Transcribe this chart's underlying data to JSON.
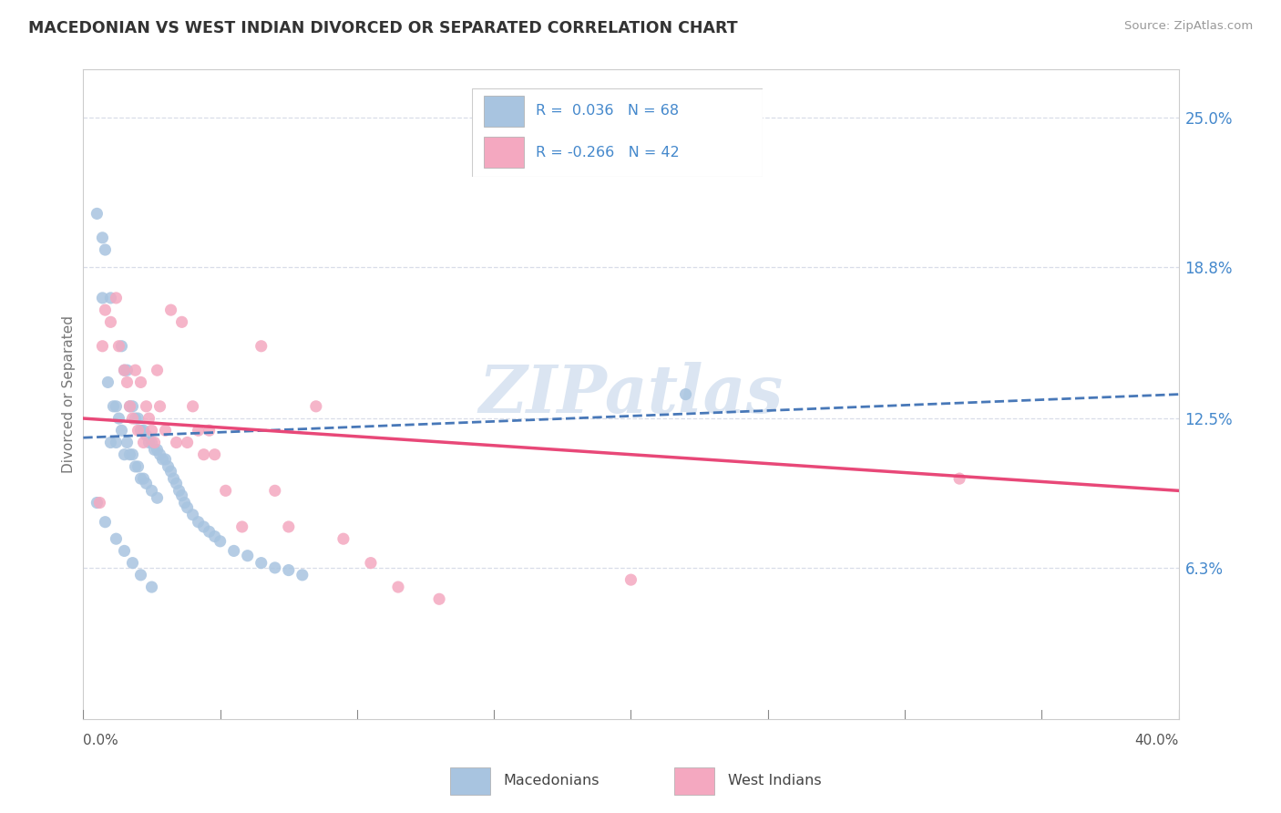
{
  "title": "MACEDONIAN VS WEST INDIAN DIVORCED OR SEPARATED CORRELATION CHART",
  "source": "Source: ZipAtlas.com",
  "ylabel": "Divorced or Separated",
  "y_ticks": [
    0.0,
    0.063,
    0.125,
    0.188,
    0.25
  ],
  "y_tick_labels": [
    "",
    "6.3%",
    "12.5%",
    "18.8%",
    "25.0%"
  ],
  "x_min": 0.0,
  "x_max": 0.4,
  "y_min": 0.0,
  "y_max": 0.27,
  "macedonian_R": "0.036",
  "macedonian_N": "68",
  "west_indian_R": "-0.266",
  "west_indian_N": "42",
  "legend_macedonians": "Macedonians",
  "legend_west_indians": "West Indians",
  "blue_scatter_color": "#a8c4e0",
  "pink_scatter_color": "#f4a8c0",
  "blue_line_color": "#4878b8",
  "pink_line_color": "#e84878",
  "legend_text_color": "#4488cc",
  "axis_tick_color": "#4488cc",
  "title_color": "#333333",
  "grid_color": "#d8dde8",
  "watermark_color": "#c8d8ec",
  "watermark_text": "ZIPatlas",
  "background_color": "#ffffff",
  "mac_line_y0": 0.117,
  "mac_line_y1": 0.135,
  "wi_line_y0": 0.125,
  "wi_line_y1": 0.095,
  "macedonian_x": [
    0.005,
    0.007,
    0.007,
    0.008,
    0.009,
    0.01,
    0.01,
    0.011,
    0.012,
    0.012,
    0.013,
    0.014,
    0.014,
    0.015,
    0.015,
    0.016,
    0.016,
    0.017,
    0.017,
    0.018,
    0.018,
    0.019,
    0.019,
    0.02,
    0.02,
    0.021,
    0.021,
    0.022,
    0.022,
    0.023,
    0.023,
    0.024,
    0.025,
    0.025,
    0.026,
    0.027,
    0.027,
    0.028,
    0.029,
    0.03,
    0.031,
    0.032,
    0.033,
    0.034,
    0.035,
    0.036,
    0.037,
    0.038,
    0.04,
    0.042,
    0.044,
    0.046,
    0.048,
    0.05,
    0.055,
    0.06,
    0.065,
    0.07,
    0.075,
    0.08,
    0.005,
    0.008,
    0.012,
    0.015,
    0.018,
    0.021,
    0.025,
    0.22
  ],
  "macedonian_y": [
    0.21,
    0.2,
    0.175,
    0.195,
    0.14,
    0.175,
    0.115,
    0.13,
    0.13,
    0.115,
    0.125,
    0.155,
    0.12,
    0.145,
    0.11,
    0.145,
    0.115,
    0.13,
    0.11,
    0.13,
    0.11,
    0.125,
    0.105,
    0.125,
    0.105,
    0.12,
    0.1,
    0.12,
    0.1,
    0.118,
    0.098,
    0.115,
    0.115,
    0.095,
    0.112,
    0.112,
    0.092,
    0.11,
    0.108,
    0.108,
    0.105,
    0.103,
    0.1,
    0.098,
    0.095,
    0.093,
    0.09,
    0.088,
    0.085,
    0.082,
    0.08,
    0.078,
    0.076,
    0.074,
    0.07,
    0.068,
    0.065,
    0.063,
    0.062,
    0.06,
    0.09,
    0.082,
    0.075,
    0.07,
    0.065,
    0.06,
    0.055,
    0.135
  ],
  "west_indian_x": [
    0.006,
    0.007,
    0.008,
    0.01,
    0.012,
    0.013,
    0.015,
    0.016,
    0.017,
    0.018,
    0.019,
    0.02,
    0.021,
    0.022,
    0.023,
    0.024,
    0.025,
    0.026,
    0.027,
    0.028,
    0.03,
    0.032,
    0.034,
    0.036,
    0.038,
    0.04,
    0.042,
    0.044,
    0.046,
    0.048,
    0.052,
    0.058,
    0.065,
    0.07,
    0.075,
    0.085,
    0.095,
    0.105,
    0.115,
    0.13,
    0.32,
    0.2
  ],
  "west_indian_y": [
    0.09,
    0.155,
    0.17,
    0.165,
    0.175,
    0.155,
    0.145,
    0.14,
    0.13,
    0.125,
    0.145,
    0.12,
    0.14,
    0.115,
    0.13,
    0.125,
    0.12,
    0.115,
    0.145,
    0.13,
    0.12,
    0.17,
    0.115,
    0.165,
    0.115,
    0.13,
    0.12,
    0.11,
    0.12,
    0.11,
    0.095,
    0.08,
    0.155,
    0.095,
    0.08,
    0.13,
    0.075,
    0.065,
    0.055,
    0.05,
    0.1,
    0.058
  ]
}
